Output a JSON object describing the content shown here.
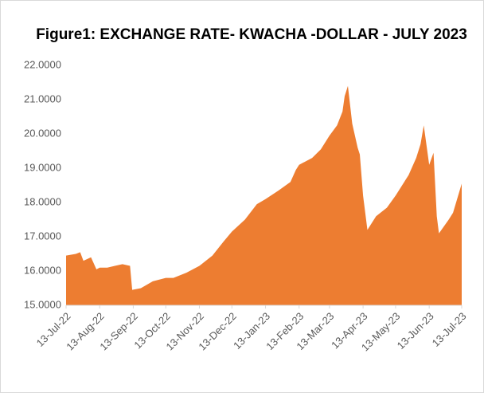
{
  "chart_data": {
    "type": "area",
    "title": "Figure1: EXCHANGE RATE- KWACHA -DOLLAR - JULY 2023",
    "color": "#ed7d31",
    "x": [
      "2022-07-13",
      "2022-07-22",
      "2022-07-26",
      "2022-07-29",
      "2022-08-05",
      "2022-08-10",
      "2022-08-13",
      "2022-08-20",
      "2022-08-27",
      "2022-09-03",
      "2022-09-10",
      "2022-09-12",
      "2022-09-20",
      "2022-10-01",
      "2022-10-13",
      "2022-10-20",
      "2022-11-01",
      "2022-11-13",
      "2022-11-25",
      "2022-12-05",
      "2022-12-13",
      "2022-12-25",
      "2023-01-05",
      "2023-01-13",
      "2023-01-25",
      "2023-02-05",
      "2023-02-10",
      "2023-02-13",
      "2023-02-25",
      "2023-03-05",
      "2023-03-13",
      "2023-03-20",
      "2023-03-25",
      "2023-03-27",
      "2023-03-30",
      "2023-04-03",
      "2023-04-08",
      "2023-04-10",
      "2023-04-13",
      "2023-04-17",
      "2023-04-25",
      "2023-05-05",
      "2023-05-13",
      "2023-05-25",
      "2023-06-01",
      "2023-06-05",
      "2023-06-08",
      "2023-06-13",
      "2023-06-17",
      "2023-06-20",
      "2023-06-22",
      "2023-07-01",
      "2023-07-05",
      "2023-07-13"
    ],
    "values": [
      16.45,
      16.5,
      16.55,
      16.3,
      16.4,
      16.05,
      16.1,
      16.1,
      16.15,
      16.2,
      16.15,
      15.45,
      15.5,
      15.7,
      15.8,
      15.8,
      15.95,
      16.15,
      16.45,
      16.85,
      17.15,
      17.5,
      17.95,
      18.1,
      18.35,
      18.6,
      18.95,
      19.1,
      19.3,
      19.55,
      19.95,
      20.25,
      20.65,
      21.1,
      21.4,
      20.3,
      19.6,
      19.4,
      18.2,
      17.2,
      17.6,
      17.85,
      18.2,
      18.8,
      19.3,
      19.7,
      20.25,
      19.1,
      19.45,
      17.6,
      17.1,
      17.5,
      17.7,
      18.55
    ],
    "xticks": [
      {
        "value": "2022-07-13",
        "label": "13-Jul-22"
      },
      {
        "value": "2022-08-13",
        "label": "13-Aug-22"
      },
      {
        "value": "2022-09-13",
        "label": "13-Sep-22"
      },
      {
        "value": "2022-10-13",
        "label": "13-Oct-22"
      },
      {
        "value": "2022-11-13",
        "label": "13-Nov-22"
      },
      {
        "value": "2022-12-13",
        "label": "13-Dec-22"
      },
      {
        "value": "2023-01-13",
        "label": "13-Jan-23"
      },
      {
        "value": "2023-02-13",
        "label": "13-Feb-23"
      },
      {
        "value": "2023-03-13",
        "label": "13-Mar-23"
      },
      {
        "value": "2023-04-13",
        "label": "13-Apr-23"
      },
      {
        "value": "2023-05-13",
        "label": "13-May-23"
      },
      {
        "value": "2023-06-13",
        "label": "13-Jun-23"
      },
      {
        "value": "2023-07-13",
        "label": "13-Jul-23"
      }
    ],
    "xlim": [
      "2022-07-13",
      "2023-07-13"
    ],
    "ylim": [
      15,
      22
    ],
    "yticks": [
      {
        "value": 15,
        "label": "15.0000"
      },
      {
        "value": 16,
        "label": "16.0000"
      },
      {
        "value": 17,
        "label": "17.0000"
      },
      {
        "value": 18,
        "label": "18.0000"
      },
      {
        "value": 19,
        "label": "19.0000"
      },
      {
        "value": 20,
        "label": "20.0000"
      },
      {
        "value": 21,
        "label": "21.0000"
      },
      {
        "value": 22,
        "label": "22.0000"
      }
    ]
  }
}
